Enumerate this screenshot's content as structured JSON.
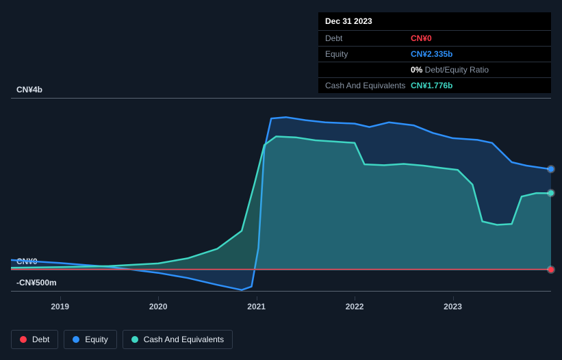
{
  "info_panel": {
    "date": "Dec 31 2023",
    "rows": [
      {
        "label": "Debt",
        "value": "CN¥0",
        "color": "#ff3b4a"
      },
      {
        "label": "Equity",
        "value": "CN¥2.335b",
        "color": "#2e90fa"
      },
      {
        "label": "",
        "value": "0%",
        "suffix": " Debt/Equity Ratio",
        "color": "#ffffff",
        "suffix_color": "#8a96a6"
      },
      {
        "label": "Cash And Equivalents",
        "value": "CN¥1.776b",
        "color": "#3fd6c3"
      }
    ]
  },
  "chart": {
    "type": "area",
    "background_color": "#111a26",
    "plot_background": "#151f2c",
    "grid_color": "#5a6573",
    "axis_color": "#313c4c",
    "x_min": 2018.5,
    "x_max": 2024.0,
    "y_min": -500,
    "y_max": 4000,
    "x_ticks": [
      2019,
      2020,
      2021,
      2022,
      2023
    ],
    "y_ticks": [
      {
        "v": 4000,
        "label": "CN¥4b"
      },
      {
        "v": 0,
        "label": "CN¥0"
      },
      {
        "v": -500,
        "label": "-CN¥500m"
      }
    ],
    "series": [
      {
        "name": "Debt",
        "color": "#ff3b4a",
        "fill_opacity": 0.15,
        "line_width": 2,
        "data": [
          [
            2018.5,
            0
          ],
          [
            2019,
            0
          ],
          [
            2019.5,
            0
          ],
          [
            2020,
            0
          ],
          [
            2020.5,
            0
          ],
          [
            2021,
            0
          ],
          [
            2021.5,
            0
          ],
          [
            2022,
            0
          ],
          [
            2022.5,
            0
          ],
          [
            2023,
            0
          ],
          [
            2023.5,
            0
          ],
          [
            2024,
            0
          ]
        ],
        "end_marker": true
      },
      {
        "name": "Equity",
        "color": "#2e90fa",
        "fill_opacity": 0.2,
        "line_width": 2.5,
        "data": [
          [
            2018.5,
            220
          ],
          [
            2019,
            150
          ],
          [
            2019.5,
            60
          ],
          [
            2020,
            -80
          ],
          [
            2020.3,
            -200
          ],
          [
            2020.6,
            -360
          ],
          [
            2020.85,
            -480
          ],
          [
            2020.95,
            -400
          ],
          [
            2021.02,
            500
          ],
          [
            2021.08,
            2800
          ],
          [
            2021.15,
            3520
          ],
          [
            2021.3,
            3550
          ],
          [
            2021.5,
            3480
          ],
          [
            2021.7,
            3430
          ],
          [
            2022,
            3400
          ],
          [
            2022.15,
            3320
          ],
          [
            2022.35,
            3430
          ],
          [
            2022.6,
            3360
          ],
          [
            2022.8,
            3180
          ],
          [
            2023,
            3060
          ],
          [
            2023.25,
            3020
          ],
          [
            2023.4,
            2950
          ],
          [
            2023.6,
            2500
          ],
          [
            2023.75,
            2420
          ],
          [
            2024,
            2335
          ]
        ],
        "end_marker": true
      },
      {
        "name": "Cash And Equivalents",
        "color": "#3fd6c3",
        "fill_opacity": 0.3,
        "line_width": 2.5,
        "data": [
          [
            2018.5,
            40
          ],
          [
            2019,
            55
          ],
          [
            2019.5,
            80
          ],
          [
            2020,
            140
          ],
          [
            2020.3,
            260
          ],
          [
            2020.6,
            480
          ],
          [
            2020.85,
            900
          ],
          [
            2020.98,
            2000
          ],
          [
            2021.08,
            2900
          ],
          [
            2021.2,
            3100
          ],
          [
            2021.4,
            3080
          ],
          [
            2021.6,
            3010
          ],
          [
            2021.8,
            2980
          ],
          [
            2022,
            2950
          ],
          [
            2022.1,
            2450
          ],
          [
            2022.3,
            2430
          ],
          [
            2022.5,
            2460
          ],
          [
            2022.7,
            2420
          ],
          [
            2022.9,
            2360
          ],
          [
            2023.05,
            2320
          ],
          [
            2023.2,
            1980
          ],
          [
            2023.3,
            1120
          ],
          [
            2023.45,
            1040
          ],
          [
            2023.6,
            1060
          ],
          [
            2023.7,
            1700
          ],
          [
            2023.85,
            1780
          ],
          [
            2024,
            1776
          ]
        ],
        "end_marker": true
      }
    ]
  },
  "legend": [
    {
      "name": "Debt",
      "color": "#ff3b4a"
    },
    {
      "name": "Equity",
      "color": "#2e90fa"
    },
    {
      "name": "Cash And Equivalents",
      "color": "#3fd6c3"
    }
  ]
}
